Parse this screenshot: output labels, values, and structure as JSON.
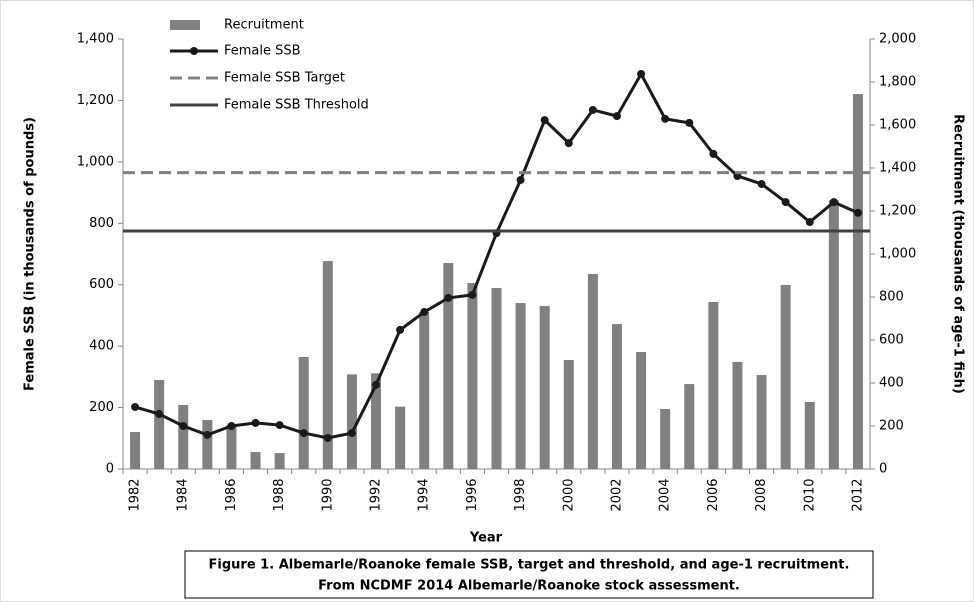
{
  "chart_data": {
    "type": "bar-line",
    "caption": [
      "Figure 1. Albemarle/Roanoke female SSB, target and threshold, and age-1 recruitment.",
      "From NCDMF 2014 Albemarle/Roanoke stock assessment."
    ],
    "x_label": "Year",
    "y_label": "Female SSB (in thousands of pounds)",
    "y2_label": "Recruitment (thousands of age-1 fish)",
    "categories": [
      "1982",
      null,
      "1984",
      null,
      "1986",
      null,
      "1988",
      null,
      "1990",
      null,
      "1992",
      null,
      "1994",
      null,
      "1996",
      null,
      "1998",
      null,
      "2000",
      null,
      "2002",
      null,
      "2004",
      null,
      "2006",
      null,
      "2008",
      null,
      "2010",
      null,
      "2012"
    ],
    "series": [
      {
        "name": "Recruitment",
        "type": "bar",
        "axis": "y2",
        "color": "#808080",
        "values": [
          172,
          414,
          298,
          228,
          205,
          79,
          74,
          521,
          967,
          440,
          445,
          290,
          730,
          958,
          865,
          842,
          772,
          758,
          507,
          907,
          674,
          544,
          279,
          395,
          777,
          498,
          437,
          856,
          312,
          1250,
          1744
        ]
      },
      {
        "name": "Female SSB",
        "type": "line",
        "axis": "y",
        "color": "#1a1a1a",
        "values": [
          202,
          179,
          140,
          111,
          140,
          150,
          143,
          117,
          101,
          117,
          274,
          453,
          511,
          557,
          567,
          768,
          941,
          1136,
          1061,
          1169,
          1149,
          1286,
          1140,
          1127,
          1026,
          954,
          928,
          869,
          804,
          869,
          834
        ]
      },
      {
        "name": "Female SSB Target",
        "type": "hline",
        "axis": "y",
        "color": "#808080",
        "dash": true,
        "value": 965
      },
      {
        "name": "Female SSB Threshold",
        "type": "hline",
        "axis": "y",
        "color": "#404040",
        "value": 775
      }
    ],
    "ylim": [
      0,
      1400
    ],
    "yticks": [
      0,
      200,
      400,
      600,
      800,
      {
        "value": 1000,
        "label": "1,000"
      },
      {
        "value": 1200,
        "label": "1,200"
      },
      {
        "value": 1400,
        "label": "1,400"
      }
    ],
    "y2lim": [
      0,
      2000
    ],
    "y2ticks": [
      0,
      200,
      400,
      600,
      800,
      {
        "value": 1000,
        "label": "1,000"
      },
      {
        "value": 1200,
        "label": "1,200"
      },
      {
        "value": 1400,
        "label": "1,400"
      },
      {
        "value": 1600,
        "label": "1,600"
      },
      {
        "value": 1800,
        "label": "1,800"
      },
      {
        "value": 2000,
        "label": "2,000"
      }
    ],
    "legend": "top-left"
  }
}
